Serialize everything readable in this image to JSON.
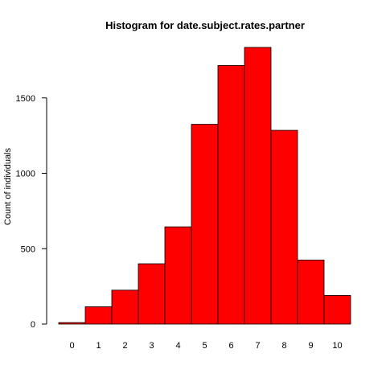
{
  "chart_data": {
    "type": "bar",
    "title": "Histogram for date.subject.rates.partner",
    "xlabel": "",
    "ylabel": "Count of individuals",
    "categories": [
      "0",
      "1",
      "2",
      "3",
      "4",
      "5",
      "6",
      "7",
      "8",
      "9",
      "10"
    ],
    "values": [
      10,
      115,
      225,
      400,
      645,
      1325,
      1715,
      1835,
      1285,
      425,
      190
    ],
    "ylim": [
      0,
      1835
    ],
    "yticks": [
      0,
      500,
      1000,
      1500
    ],
    "bar_color": "#ff0000",
    "grid": false,
    "legend": "none"
  }
}
